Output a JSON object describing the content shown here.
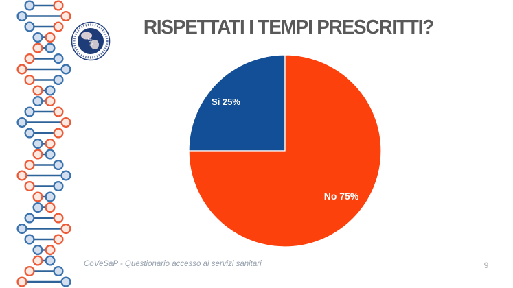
{
  "slide": {
    "title": "RISPETTATI I TEMPI PRESCRITTI?",
    "footer": "CoVeSaP - Questionario accesso ai servizi sanitari",
    "page_number": "9"
  },
  "logo": {
    "description": "circular medical association emblem with globe and caduceus",
    "symbol": "⚕",
    "ring_color": "#24417E",
    "globe_color": "#1E3C78",
    "land_color": "#EBDCDB"
  },
  "theme": {
    "background": "#FFFFFF",
    "title_color": "#595959",
    "footer_color": "#97A1AF",
    "page_number_color": "#A8A8A8"
  },
  "decor": {
    "dna_blue_stroke": "#3A72AE",
    "dna_blue_fill": "#D3DFEE",
    "dna_orange_stroke": "#EC5B38",
    "dna_orange_fill": "#FBE9E2",
    "dna_line_color": "#2E6399"
  },
  "chart_data": {
    "type": "pie",
    "title": "RISPETTATI I TEMPI PRESCRITTI?",
    "slices": [
      {
        "label": "Si",
        "value": 25,
        "display_label": "Si 25%",
        "color": "#134F96"
      },
      {
        "label": "No",
        "value": 75,
        "display_label": "No 75%",
        "color": "#FD410D"
      }
    ],
    "start_angle_deg": -90,
    "direction": "counterclockwise",
    "legend": "none",
    "data_labels": "inside",
    "label_color": "#FFFFFF",
    "slice_border_color": "#FFFFFF"
  }
}
